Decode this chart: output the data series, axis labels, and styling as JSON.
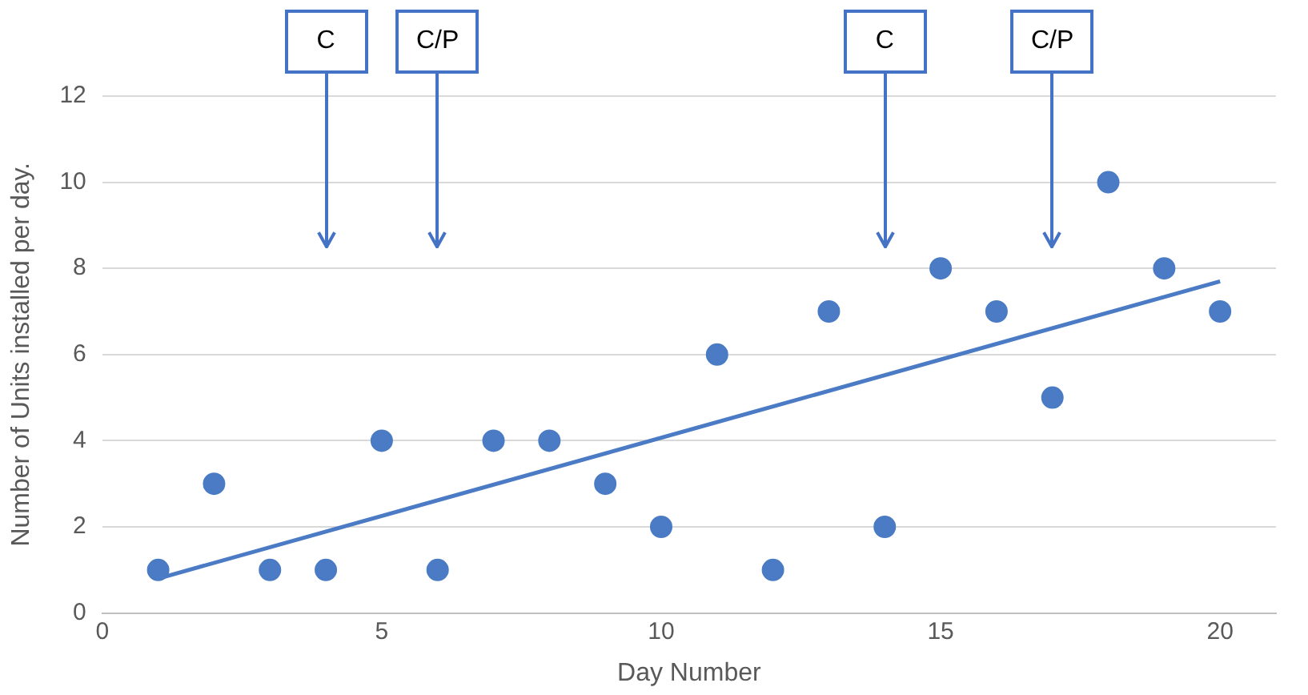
{
  "chart_data": {
    "type": "scatter",
    "xlabel": "Day Number",
    "ylabel": "Number of Units installed per day.",
    "xlim": [
      0,
      21
    ],
    "xticks": [
      0,
      5,
      10,
      15,
      20
    ],
    "ylim": [
      0,
      12
    ],
    "yticks": [
      0,
      2,
      4,
      6,
      8,
      10,
      12
    ],
    "grid": "y",
    "legend": false,
    "marker": "circle",
    "series": [
      {
        "color": "#4a7bc4",
        "x": [
          1,
          2,
          3,
          4,
          5,
          6,
          7,
          8,
          9,
          10,
          11,
          12,
          13,
          14,
          15,
          16,
          17,
          18,
          19,
          20
        ],
        "values": [
          1,
          3,
          1,
          1,
          4,
          1,
          4,
          4,
          3,
          2,
          6,
          1,
          7,
          2,
          8,
          7,
          5,
          10,
          8,
          7
        ]
      },
      {
        "type": "line",
        "color": "#4a7bc4",
        "marker": "none",
        "line_style": "solid",
        "x": [
          1,
          20
        ],
        "values": [
          0.8,
          7.7
        ]
      }
    ],
    "ref_lines": [
      {
        "axis": "x",
        "value": 4,
        "label": "C"
      },
      {
        "axis": "x",
        "value": 6,
        "label": "C/P"
      },
      {
        "axis": "x",
        "value": 14,
        "label": "C"
      },
      {
        "axis": "x",
        "value": 17,
        "label": "C/P"
      }
    ]
  }
}
